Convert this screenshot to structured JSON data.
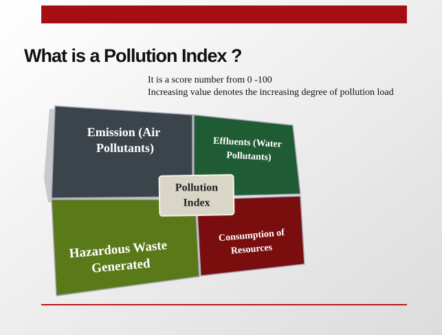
{
  "slide": {
    "title": "What is a Pollution Index ?",
    "description": [
      "It is a score number from 0 -100",
      "Increasing value denotes the increasing degree of pollution load"
    ],
    "diagram": {
      "quadrants": [
        {
          "lines": [
            "Emission (Air",
            "Pollutants)"
          ]
        },
        {
          "lines": [
            "Effluents (Water",
            "Pollutants)"
          ]
        },
        {
          "lines": [
            "Hazardous Waste",
            "Generated"
          ]
        },
        {
          "lines": [
            "Consumption of",
            "Resources"
          ]
        }
      ],
      "center": {
        "lines": [
          "Pollution",
          "Index"
        ]
      }
    }
  }
}
